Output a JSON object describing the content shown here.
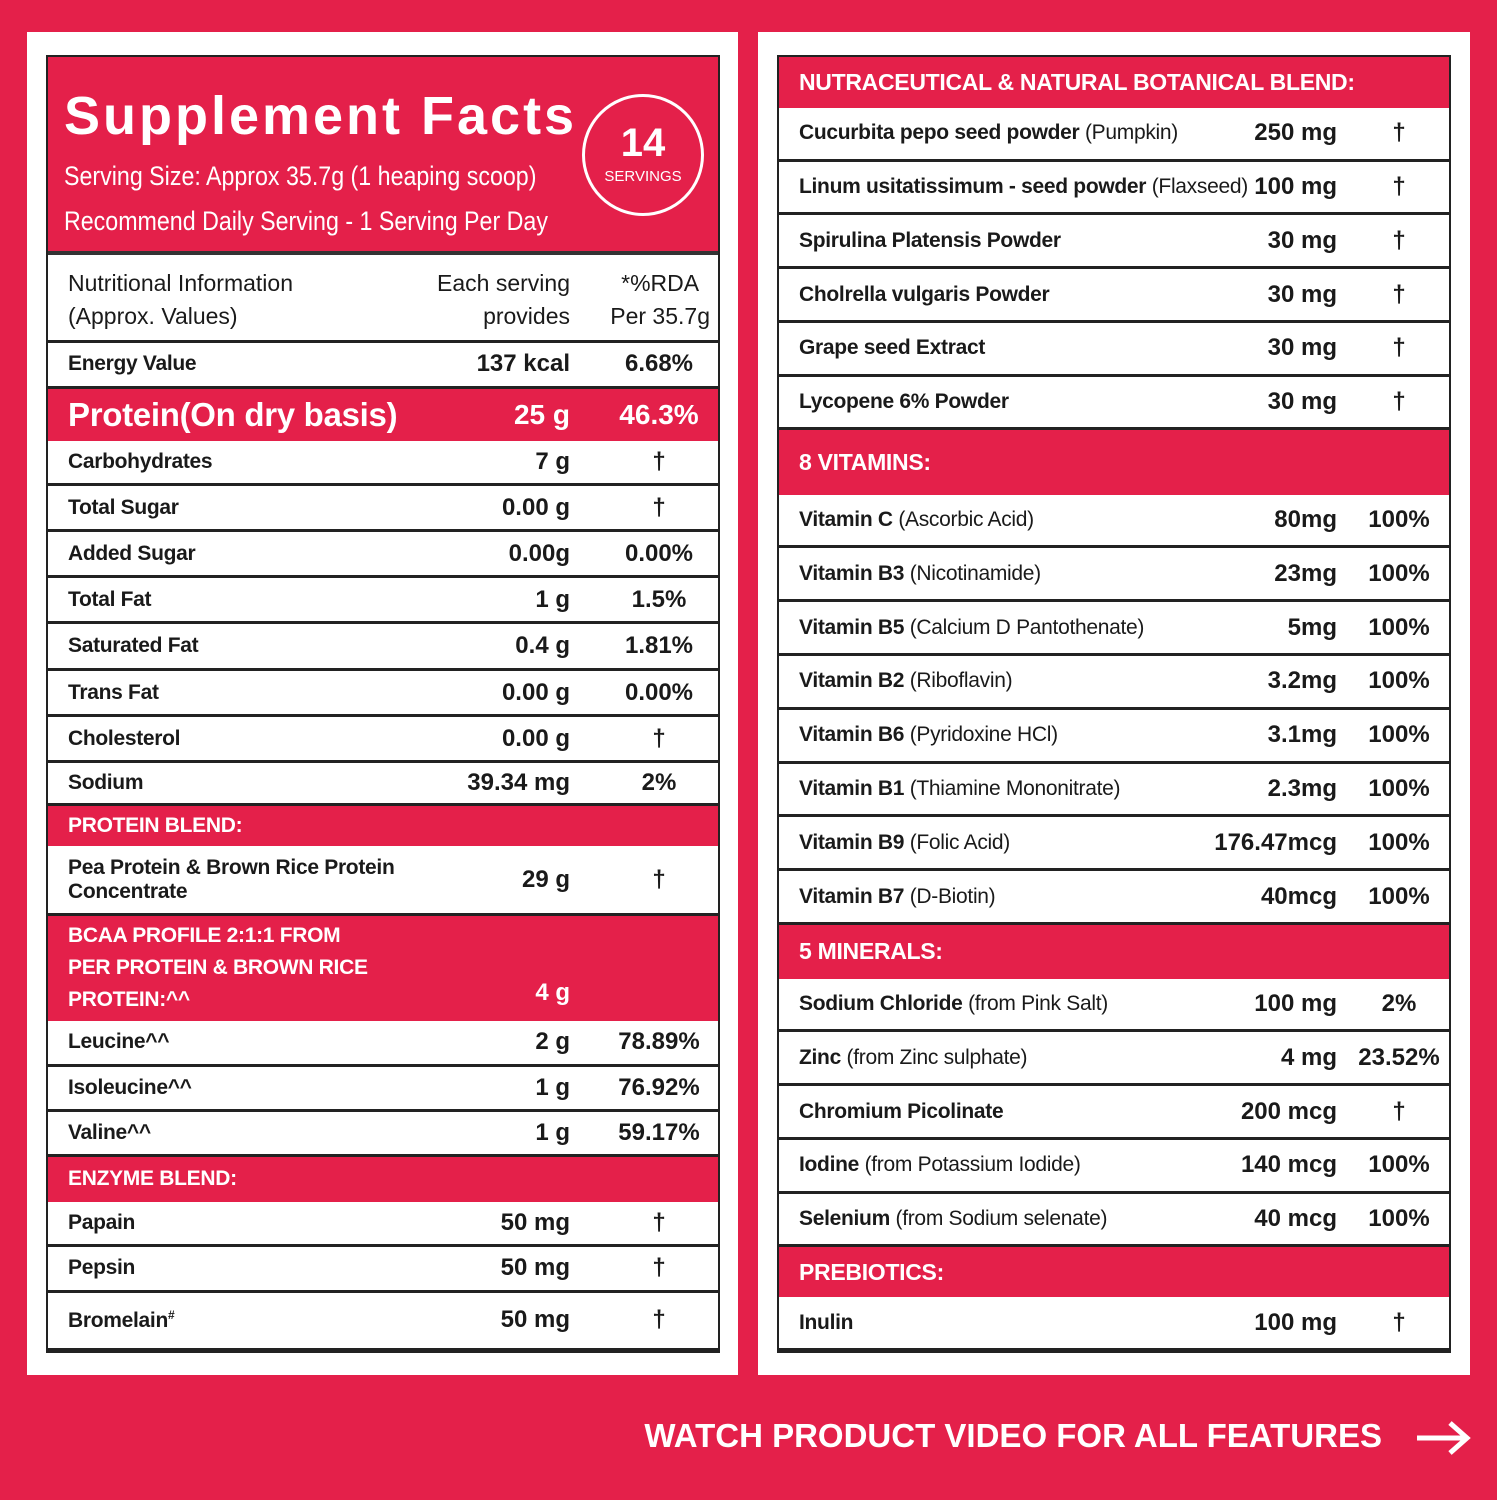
{
  "left": {
    "title": "Supplement Facts",
    "serving_size": "Serving Size: Approx 35.7g (1 heaping scoop)",
    "daily": "Recommend Daily Serving - 1 Serving Per Day",
    "badge": {
      "number": "14",
      "label": "SERVINGS"
    },
    "header": [
      [
        "Nutritional Information",
        "(Approx. Values)"
      ],
      [
        "Each serving",
        "provides"
      ],
      [
        "*%RDA",
        "Per 35.7g"
      ]
    ],
    "rows": [
      {
        "name": "Energy Value",
        "amount": "137 kcal",
        "rda": "6.68%"
      },
      {
        "name": "Protein(On dry basis)",
        "amount": "25 g",
        "rda": "46.3%"
      },
      {
        "name": "Carbohydrates",
        "amount": "7 g",
        "rda": "†"
      },
      {
        "name": "Total Sugar",
        "amount": "0.00 g",
        "rda": "†"
      },
      {
        "name": "Added Sugar",
        "amount": "0.00g",
        "rda": "0.00%"
      },
      {
        "name": "Total Fat",
        "amount": "1 g",
        "rda": "1.5%"
      },
      {
        "name": "Saturated Fat",
        "amount": "0.4 g",
        "rda": "1.81%"
      },
      {
        "name": "Trans Fat",
        "amount": "0.00 g",
        "rda": "0.00%"
      },
      {
        "name": "Cholesterol",
        "amount": "0.00 g",
        "rda": "†"
      },
      {
        "name": "Sodium",
        "amount": "39.34 mg",
        "rda": "2%"
      },
      {
        "section": "PROTEIN BLEND:"
      },
      {
        "name": "Pea Protein & Brown Rice Protein Concentrate",
        "amount": "29 g",
        "rda": "†"
      },
      {
        "section": "BCAA PROFILE 2:1:1 FROM PER PROTEIN & BROWN RICE PROTEIN:^^",
        "amount": "4 g"
      },
      {
        "name": "Leucine^^",
        "amount": "2 g",
        "rda": "78.89%"
      },
      {
        "name": "Isoleucine^^",
        "amount": "1 g",
        "rda": "76.92%"
      },
      {
        "name": "Valine^^",
        "amount": "1 g",
        "rda": "59.17%"
      },
      {
        "section": "ENZYME BLEND:"
      },
      {
        "name": "Papain",
        "amount": "50 mg",
        "rda": "†"
      },
      {
        "name": "Pepsin",
        "amount": "50 mg",
        "rda": "†"
      },
      {
        "name": "Bromelain",
        "sup": "#",
        "amount": "50 mg",
        "rda": "†"
      }
    ]
  },
  "right": {
    "sections": [
      {
        "title": "NUTRACEUTICAL & NATURAL BOTANICAL BLEND:",
        "rows": [
          {
            "name": "Cucurbita pepo seed powder",
            "detail": "(Pumpkin)",
            "amount": "250 mg",
            "rda": "†"
          },
          {
            "name": "Linum usitatissimum - seed powder",
            "detail": "(Flaxseed)",
            "amount": "100 mg",
            "rda": "†"
          },
          {
            "name": "Spirulina Platensis Powder",
            "amount": "30 mg",
            "rda": "†"
          },
          {
            "name": "Cholrella vulgaris Powder",
            "amount": "30 mg",
            "rda": "†"
          },
          {
            "name": "Grape seed Extract",
            "amount": "30 mg",
            "rda": "†"
          },
          {
            "name": "Lycopene 6% Powder",
            "amount": "30 mg",
            "rda": "†"
          }
        ]
      },
      {
        "title": "8 VITAMINS:",
        "rows": [
          {
            "name": "Vitamin C",
            "detail": "(Ascorbic Acid)",
            "amount": "80mg",
            "rda": "100%"
          },
          {
            "name": "Vitamin B3",
            "detail": "(Nicotinamide)",
            "amount": "23mg",
            "rda": "100%"
          },
          {
            "name": "Vitamin B5",
            "detail": "(Calcium D Pantothenate)",
            "amount": "5mg",
            "rda": "100%"
          },
          {
            "name": "Vitamin B2",
            "detail": "(Riboflavin)",
            "amount": "3.2mg",
            "rda": "100%"
          },
          {
            "name": "Vitamin B6",
            "detail": "(Pyridoxine HCl)",
            "amount": "3.1mg",
            "rda": "100%"
          },
          {
            "name": "Vitamin B1",
            "detail": "(Thiamine Mononitrate)",
            "amount": "2.3mg",
            "rda": "100%"
          },
          {
            "name": "Vitamin B9",
            "detail": "(Folic Acid)",
            "amount": "176.47mcg",
            "rda": "100%"
          },
          {
            "name": "Vitamin B7",
            "detail": "(D-Biotin)",
            "amount": "40mcg",
            "rda": "100%"
          }
        ]
      },
      {
        "title": "5 MINERALS:",
        "rows": [
          {
            "name": "Sodium Chloride",
            "detail": "(from Pink Salt)",
            "amount": "100 mg",
            "rda": "2%"
          },
          {
            "name": "Zinc",
            "detail": "(from Zinc sulphate)",
            "amount": "4 mg",
            "rda": "23.52%"
          },
          {
            "name": "Chromium Picolinate",
            "amount": "200 mcg",
            "rda": "†"
          },
          {
            "name": "Iodine",
            "detail": "(from Potassium Iodide)",
            "amount": "140 mcg",
            "rda": "100%"
          },
          {
            "name": "Selenium",
            "detail": "(from Sodium selenate)",
            "amount": "40 mcg",
            "rda": "100%"
          }
        ]
      },
      {
        "title": "PREBIOTICS:",
        "rows": [
          {
            "name": "Inulin",
            "amount": "100 mg",
            "rda": "†"
          }
        ]
      }
    ]
  },
  "footer": {
    "cta": "WATCH PRODUCT VIDEO FOR ALL FEATURES"
  }
}
